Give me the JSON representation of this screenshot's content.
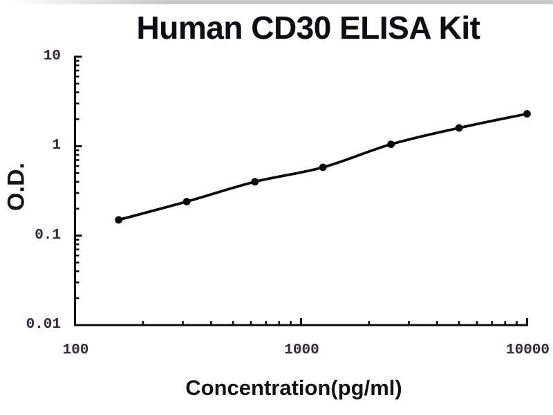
{
  "figure": {
    "background": "#ffffff"
  },
  "chart_data": {
    "type": "line",
    "subtype": "scatter-line standard curve",
    "title": "Human CD30 ELISA Kit",
    "xlabel": "Concentration(pg/ml)",
    "ylabel": "O.D.",
    "x_scale": "log",
    "y_scale": "log",
    "xlim": [
      100,
      10000
    ],
    "ylim": [
      0.01,
      10
    ],
    "grid": "off",
    "legend": "none",
    "x_ticks": [
      {
        "value": 100,
        "label": "100"
      },
      {
        "value": 1000,
        "label": "1000"
      },
      {
        "value": 10000,
        "label": "10000"
      }
    ],
    "y_ticks": [
      {
        "value": 10,
        "label": "10"
      },
      {
        "value": 1,
        "label": "1"
      },
      {
        "value": 0.1,
        "label": "0.1"
      },
      {
        "value": 0.01,
        "label": "0.01"
      }
    ],
    "series": [
      {
        "name": "standard-curve",
        "marker": "filled-circle",
        "x": [
          156,
          312,
          625,
          1250,
          2500,
          5000,
          10000
        ],
        "y": [
          0.15,
          0.24,
          0.4,
          0.58,
          1.05,
          1.6,
          2.3
        ]
      }
    ],
    "colors": {
      "curve": "#0a0a0a",
      "marker": "#0a0a0a",
      "axis": "#0d0d0d",
      "tick_label": "#3a2a44",
      "title": "#0e0e16",
      "axis_title": "#121218"
    }
  }
}
